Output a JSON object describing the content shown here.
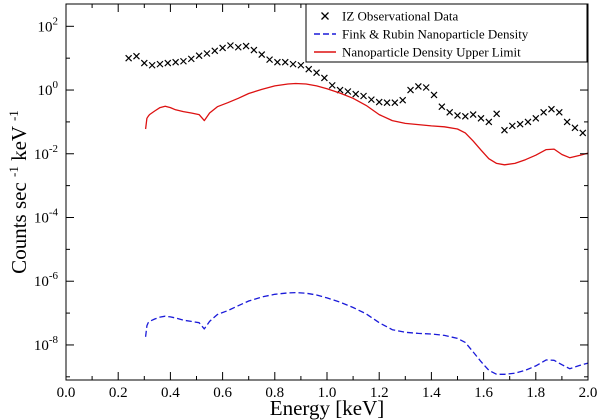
{
  "chart_data": {
    "type": "line",
    "title": "",
    "xlabel": "Energy [keV]",
    "ylabel_parts": {
      "pre": "Counts sec",
      "exp1": "-1",
      "mid": " keV",
      "exp2": "-1"
    },
    "xlim": [
      0.0,
      2.0
    ],
    "ylim_log10": [
      -9.1,
      2.7
    ],
    "y_scale": "log",
    "x_ticks": [
      "0.0",
      "0.2",
      "0.4",
      "0.6",
      "0.8",
      "1.0",
      "1.2",
      "1.4",
      "1.6",
      "1.8",
      "2.0"
    ],
    "x_tick_values": [
      0.0,
      0.2,
      0.4,
      0.6,
      0.8,
      1.0,
      1.2,
      1.4,
      1.6,
      1.8,
      2.0
    ],
    "y_tick_base": "10",
    "y_tick_exponents": [
      "2",
      "0",
      "-2",
      "-4",
      "-6",
      "-8"
    ],
    "y_tick_values_log10": [
      2,
      0,
      -2,
      -4,
      -6,
      -8
    ],
    "legend_position": "top-right",
    "series": [
      {
        "name": "IZ Observational Data",
        "style": "markers",
        "marker": "x",
        "color": "#000000",
        "x": [
          0.24,
          0.27,
          0.3,
          0.33,
          0.36,
          0.39,
          0.42,
          0.45,
          0.48,
          0.51,
          0.54,
          0.57,
          0.6,
          0.63,
          0.66,
          0.69,
          0.72,
          0.75,
          0.78,
          0.81,
          0.84,
          0.87,
          0.9,
          0.93,
          0.96,
          0.99,
          1.02,
          1.05,
          1.08,
          1.11,
          1.14,
          1.17,
          1.2,
          1.23,
          1.26,
          1.29,
          1.32,
          1.35,
          1.38,
          1.41,
          1.44,
          1.47,
          1.5,
          1.53,
          1.56,
          1.59,
          1.62,
          1.65,
          1.68,
          1.71,
          1.74,
          1.77,
          1.8,
          1.83,
          1.86,
          1.89,
          1.92,
          1.95,
          1.98
        ],
        "y": [
          10,
          11.5,
          7,
          6,
          6.5,
          7,
          7.5,
          8,
          9.5,
          12,
          14,
          17,
          21,
          25,
          22,
          24,
          18,
          13,
          9,
          7.5,
          7.5,
          6.5,
          6,
          4.5,
          3.5,
          2.4,
          1.4,
          1.0,
          0.9,
          0.75,
          0.65,
          0.5,
          0.42,
          0.4,
          0.4,
          0.48,
          1.0,
          1.3,
          1.2,
          0.7,
          0.3,
          0.2,
          0.16,
          0.15,
          0.17,
          0.13,
          0.1,
          0.18,
          0.055,
          0.075,
          0.085,
          0.1,
          0.13,
          0.2,
          0.25,
          0.2,
          0.1,
          0.065,
          0.045
        ]
      },
      {
        "name": "Fink & Rubin Nanoparticle Density",
        "style": "dashed",
        "color": "#1a1ad9",
        "x": [
          0.305,
          0.31,
          0.315,
          0.32,
          0.34,
          0.36,
          0.38,
          0.4,
          0.42,
          0.45,
          0.48,
          0.51,
          0.53,
          0.55,
          0.58,
          0.62,
          0.66,
          0.7,
          0.75,
          0.8,
          0.85,
          0.88,
          0.92,
          0.96,
          1.0,
          1.05,
          1.1,
          1.15,
          1.2,
          1.25,
          1.3,
          1.35,
          1.4,
          1.45,
          1.5,
          1.53,
          1.56,
          1.59,
          1.62,
          1.65,
          1.68,
          1.72,
          1.76,
          1.8,
          1.84,
          1.87,
          1.9,
          1.93,
          1.97,
          2.0
        ],
        "y": [
          1.8e-08,
          4e-08,
          5e-08,
          5.5e-08,
          6.5e-08,
          7.5e-08,
          8e-08,
          7.6e-08,
          7e-08,
          6e-08,
          5.5e-08,
          5e-08,
          3.2e-08,
          5.5e-08,
          9e-08,
          1.2e-07,
          1.7e-07,
          2.4e-07,
          3.2e-07,
          3.9e-07,
          4.3e-07,
          4.4e-07,
          4.2e-07,
          3.7e-07,
          3e-07,
          2.2e-07,
          1.5e-07,
          9.5e-08,
          5e-08,
          3e-08,
          2.5e-08,
          2.3e-08,
          2.2e-08,
          2e-08,
          1.6e-08,
          1.2e-08,
          6e-09,
          3e-09,
          1.6e-09,
          1.2e-09,
          1.2e-09,
          1.3e-09,
          1.6e-09,
          2.2e-09,
          3.4e-09,
          3.3e-09,
          2.4e-09,
          1.8e-09,
          2.3e-09,
          2.7e-09
        ]
      },
      {
        "name": "Nanoparticle Density Upper Limit",
        "style": "solid",
        "color": "#dd1111",
        "x": [
          0.305,
          0.31,
          0.315,
          0.32,
          0.34,
          0.36,
          0.38,
          0.4,
          0.42,
          0.45,
          0.48,
          0.51,
          0.53,
          0.55,
          0.58,
          0.62,
          0.66,
          0.7,
          0.75,
          0.8,
          0.85,
          0.88,
          0.92,
          0.96,
          1.0,
          1.05,
          1.1,
          1.15,
          1.2,
          1.25,
          1.3,
          1.35,
          1.4,
          1.45,
          1.5,
          1.53,
          1.56,
          1.59,
          1.62,
          1.65,
          1.68,
          1.72,
          1.76,
          1.8,
          1.84,
          1.87,
          1.9,
          1.93,
          1.97,
          2.0
        ],
        "y": [
          0.06,
          0.13,
          0.15,
          0.17,
          0.22,
          0.28,
          0.31,
          0.28,
          0.24,
          0.21,
          0.19,
          0.17,
          0.11,
          0.19,
          0.3,
          0.4,
          0.55,
          0.78,
          1.05,
          1.35,
          1.55,
          1.6,
          1.55,
          1.35,
          1.1,
          0.8,
          0.55,
          0.33,
          0.17,
          0.11,
          0.09,
          0.082,
          0.075,
          0.07,
          0.06,
          0.045,
          0.025,
          0.013,
          0.007,
          0.005,
          0.0045,
          0.005,
          0.0065,
          0.009,
          0.0135,
          0.014,
          0.0095,
          0.0075,
          0.009,
          0.0105
        ]
      }
    ]
  }
}
